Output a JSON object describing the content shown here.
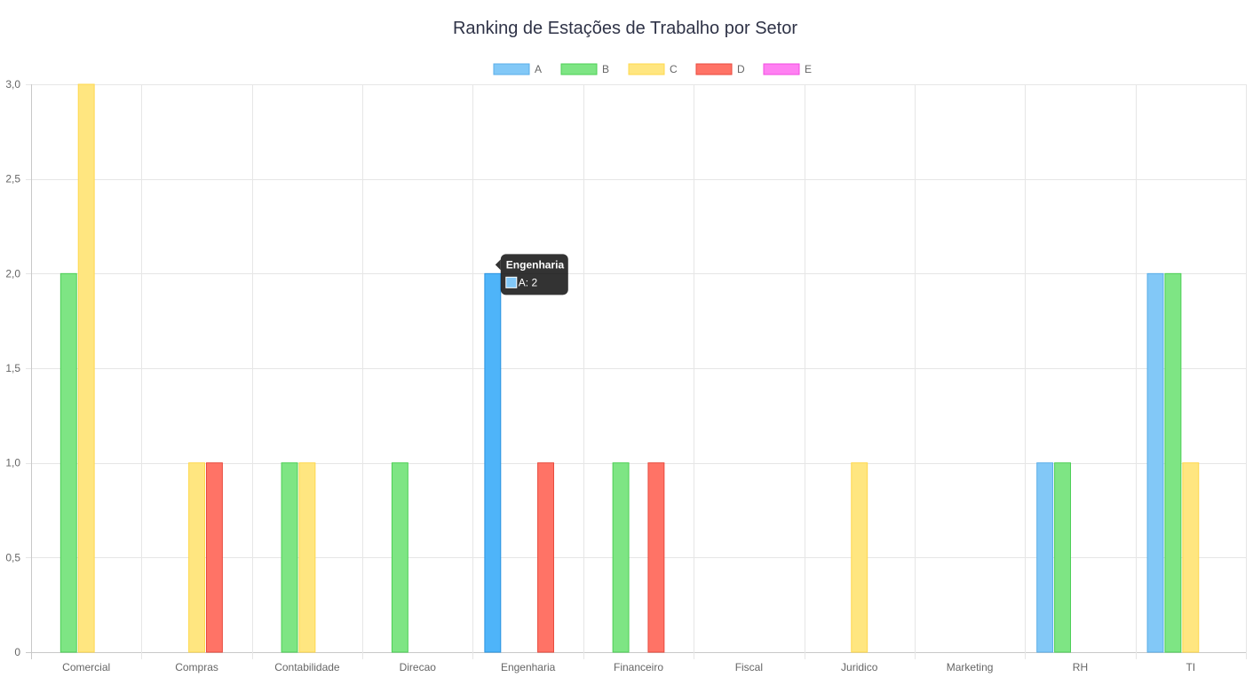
{
  "chart_data": {
    "type": "bar",
    "title": "Ranking de Estações de Trabalho por Setor",
    "categories": [
      "Comercial",
      "Compras",
      "Contabilidade",
      "Direcao",
      "Engenharia",
      "Financeiro",
      "Fiscal",
      "Juridico",
      "Marketing",
      "RH",
      "TI"
    ],
    "series": [
      {
        "name": "A",
        "values": [
          0,
          0,
          0,
          0,
          2,
          0,
          0,
          0,
          0,
          1,
          2
        ],
        "color": "#82c8f7",
        "border": "#5aaee8"
      },
      {
        "name": "B",
        "values": [
          2,
          0,
          1,
          1,
          0,
          1,
          0,
          0,
          0,
          1,
          2
        ],
        "color": "#7ee584",
        "border": "#4ccf55"
      },
      {
        "name": "C",
        "values": [
          3,
          1,
          1,
          0,
          0,
          0,
          0,
          1,
          0,
          0,
          1
        ],
        "color": "#ffe680",
        "border": "#ffd84d"
      },
      {
        "name": "D",
        "values": [
          0,
          1,
          0,
          0,
          1,
          1,
          0,
          0,
          0,
          0,
          0
        ],
        "color": "#ff7366",
        "border": "#e84a3d"
      },
      {
        "name": "E",
        "values": [
          0,
          0,
          0,
          0,
          0,
          0,
          0,
          0,
          0,
          0,
          0
        ],
        "color": "#ff80f2",
        "border": "#f24de0"
      }
    ],
    "ylim": [
      0,
      3
    ],
    "yticks": [
      "0",
      "0,5",
      "1,0",
      "1,5",
      "2,0",
      "2,5",
      "3,0"
    ],
    "grid": true,
    "legend_position": "top",
    "tooltip": {
      "title": "Engenharia",
      "body": "A: 2",
      "category_index": 4,
      "series_index": 0,
      "color": "#4eb4f9",
      "border": "#2a93e0"
    }
  }
}
